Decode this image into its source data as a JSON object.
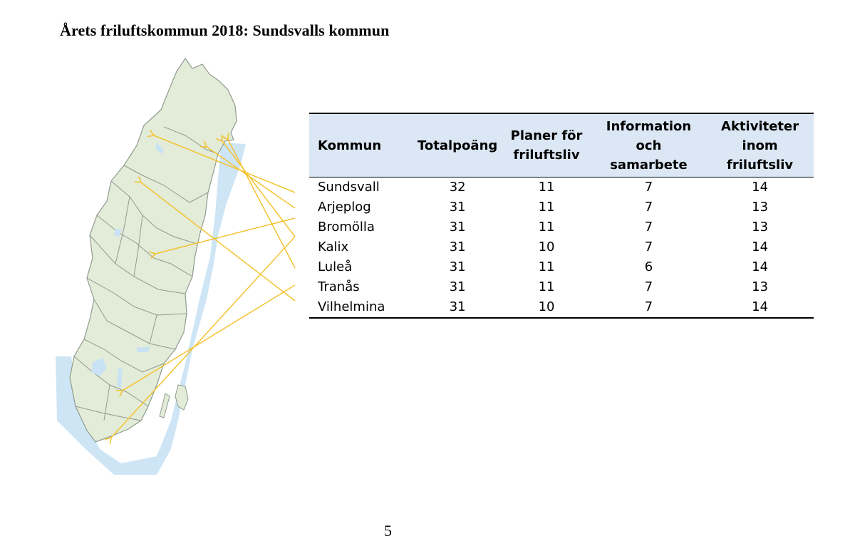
{
  "heading": "Årets friluftskommun 2018: Sundsvalls kommun",
  "table": {
    "headers": [
      "Kommun",
      "Totalpoäng",
      "Planer för friluftsliv",
      "Information och samarbete",
      "Aktiviteter inom friluftsliv"
    ],
    "rows": [
      [
        "Sundsvall",
        "32",
        "11",
        "7",
        "14"
      ],
      [
        "Arjeplog",
        "31",
        "11",
        "7",
        "13"
      ],
      [
        "Bromölla",
        "31",
        "11",
        "7",
        "13"
      ],
      [
        "Kalix",
        "31",
        "10",
        "7",
        "14"
      ],
      [
        "Luleå",
        "31",
        "11",
        "6",
        "14"
      ],
      [
        "Tranås",
        "31",
        "11",
        "7",
        "13"
      ],
      [
        "Vilhelmina",
        "31",
        "10",
        "7",
        "14"
      ]
    ]
  },
  "page_number": "5",
  "colors": {
    "land": "#e3ecd8",
    "water": "#c9e2f4",
    "border": "#8f9b8f",
    "arrow": "#f3c331",
    "header_bg": "#dbe7f4"
  }
}
